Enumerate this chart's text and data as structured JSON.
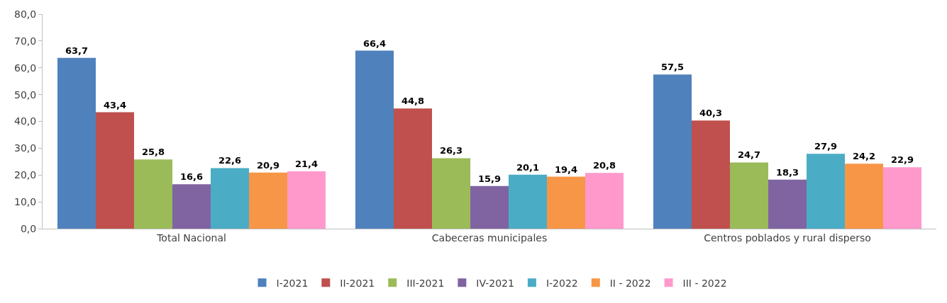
{
  "chart_data": {
    "type": "bar",
    "categories": [
      "Total Nacional",
      "Cabeceras municipales",
      "Centros poblados y rural disperso"
    ],
    "series": [
      {
        "name": "I-2021",
        "color": "#4f81bd",
        "values": [
          63.7,
          66.4,
          57.5
        ],
        "value_labels": [
          "63,7",
          "66,4",
          "57,5"
        ]
      },
      {
        "name": "II-2021",
        "color": "#c0504d",
        "values": [
          43.4,
          44.8,
          40.3
        ],
        "value_labels": [
          "43,4",
          "44,8",
          "40,3"
        ]
      },
      {
        "name": "III-2021",
        "color": "#9bbb59",
        "values": [
          25.8,
          26.3,
          24.7
        ],
        "value_labels": [
          "25,8",
          "26,3",
          "24,7"
        ]
      },
      {
        "name": "IV-2021",
        "color": "#8064a2",
        "values": [
          16.6,
          15.9,
          18.3
        ],
        "value_labels": [
          "16,6",
          "15,9",
          "18,3"
        ]
      },
      {
        "name": "I-2022",
        "color": "#4bacc6",
        "values": [
          22.6,
          20.1,
          27.9
        ],
        "value_labels": [
          "22,6",
          "20,1",
          "27,9"
        ]
      },
      {
        "name": "II - 2022",
        "color": "#f79646",
        "values": [
          20.9,
          19.4,
          24.2
        ],
        "value_labels": [
          "20,9",
          "19,4",
          "24,2"
        ]
      },
      {
        "name": "III - 2022",
        "color": "#ff99cc",
        "values": [
          21.4,
          20.8,
          22.9
        ],
        "value_labels": [
          "21,4",
          "20,8",
          "22,9"
        ]
      }
    ],
    "ylim": [
      0,
      80
    ],
    "yticks": [
      {
        "value": 0,
        "label": "0,0"
      },
      {
        "value": 10,
        "label": "10,0"
      },
      {
        "value": 20,
        "label": "20,0"
      },
      {
        "value": 30,
        "label": "30,0"
      },
      {
        "value": 40,
        "label": "40,0"
      },
      {
        "value": 50,
        "label": "50,0"
      },
      {
        "value": 60,
        "label": "60,0"
      },
      {
        "value": 70,
        "label": "70,0"
      },
      {
        "value": 80,
        "label": "80,0"
      }
    ],
    "grid": false,
    "legend": "bottom"
  }
}
